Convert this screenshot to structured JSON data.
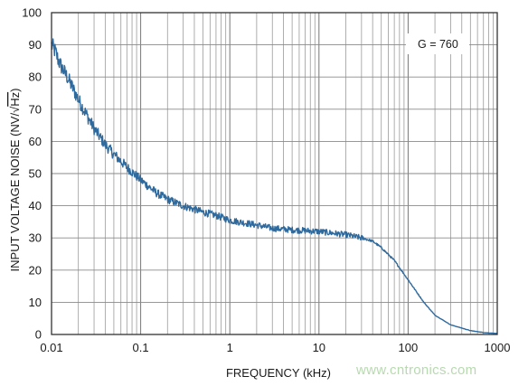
{
  "chart_data": {
    "type": "line",
    "xlabel": "FREQUENCY (kHz)",
    "ylabel_prefix": "INPUT VOLTAGE NOISE (NV/",
    "ylabel_radical": "√",
    "ylabel_hz": "Hz",
    "ylabel_suffix": ")",
    "x_scale": "log",
    "xlim": [
      0.01,
      1000
    ],
    "ylim": [
      0,
      100
    ],
    "x_ticks": [
      0.01,
      0.1,
      1,
      10,
      100,
      1000
    ],
    "x_tick_labels": [
      "0.01",
      "0.1",
      "1",
      "10",
      "100",
      "1000"
    ],
    "y_ticks": [
      0,
      10,
      20,
      30,
      40,
      50,
      60,
      70,
      80,
      90,
      100
    ],
    "y_tick_labels": [
      "0",
      "10",
      "20",
      "30",
      "40",
      "50",
      "60",
      "70",
      "80",
      "90",
      "100"
    ],
    "grid": true,
    "annotation": "G = 760",
    "series": [
      {
        "color": "#2e6a9e",
        "points": [
          [
            0.01,
            90
          ],
          [
            0.011,
            88
          ],
          [
            0.012,
            85
          ],
          [
            0.013,
            83
          ],
          [
            0.015,
            80
          ],
          [
            0.017,
            77
          ],
          [
            0.02,
            73
          ],
          [
            0.025,
            68
          ],
          [
            0.03,
            64
          ],
          [
            0.04,
            59
          ],
          [
            0.05,
            56
          ],
          [
            0.07,
            52
          ],
          [
            0.1,
            48
          ],
          [
            0.15,
            44
          ],
          [
            0.2,
            42
          ],
          [
            0.3,
            40
          ],
          [
            0.5,
            38
          ],
          [
            0.7,
            37
          ],
          [
            1,
            35.5
          ],
          [
            2,
            34
          ],
          [
            3,
            33
          ],
          [
            5,
            32.5
          ],
          [
            10,
            32
          ],
          [
            20,
            31
          ],
          [
            30,
            30
          ],
          [
            40,
            29
          ],
          [
            50,
            27
          ],
          [
            70,
            23
          ],
          [
            100,
            17
          ],
          [
            150,
            10
          ],
          [
            200,
            6
          ],
          [
            300,
            3
          ],
          [
            500,
            1.2
          ],
          [
            700,
            0.6
          ],
          [
            1000,
            0.3
          ]
        ]
      }
    ]
  },
  "watermark": "www.cntronics.com"
}
